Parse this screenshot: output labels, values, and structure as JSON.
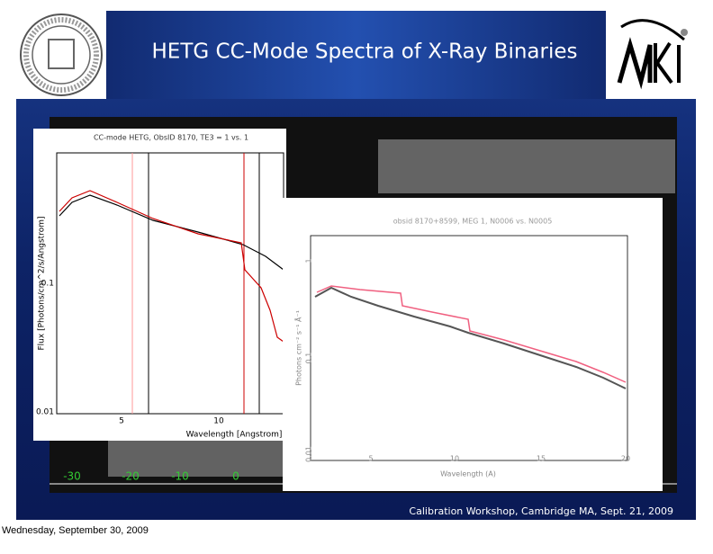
{
  "header": {
    "title": "HETG CC-Mode Spectra of X-Ray Binaries"
  },
  "background_image": {
    "x_ticks": [
      "-30",
      "-20",
      "-10",
      "0"
    ]
  },
  "left_plot": {
    "title": "CC-mode HETG, ObsID 8170, TE3 = 1 vs. 1",
    "x_label": "Wavelength [Angstrom]",
    "y_label": "Flux [Photons/cm^2/s/Angstrom]",
    "x_ticks": [
      "5",
      "10"
    ],
    "y_ticks": [
      "0.1",
      "0.01"
    ]
  },
  "right_plot": {
    "title": "obsid 8170+8599, MEG 1, N0006 vs. N0005",
    "x_label": "Wavelength (A)",
    "y_label": "Photons cm⁻² s⁻¹ Å⁻¹",
    "x_ticks": [
      "5",
      "10",
      "15",
      "20"
    ],
    "y_ticks": [
      "1",
      "0.1",
      "0.01"
    ]
  },
  "footer": {
    "text": "Calibration Workshop, Cambridge MA, Sept. 21, 2009"
  },
  "page_date": "Wednesday, September 30, 2009"
}
